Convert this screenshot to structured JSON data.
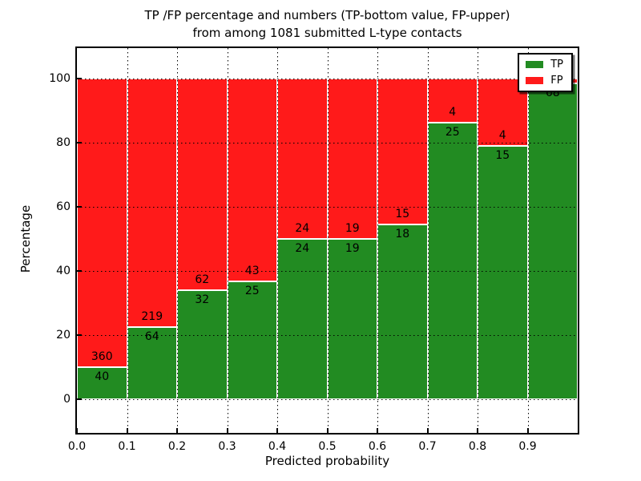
{
  "chart_data": {
    "type": "bar",
    "stacked": true,
    "normalized": "percent",
    "title_line1": "TP /FP percentage and numbers (TP-bottom value, FP-upper)",
    "title_line2": "from among 1081 submitted L-type contacts",
    "xlabel": "Predicted probability",
    "ylabel": "Percentage",
    "total_contacts": 1081,
    "bin_width": 0.1,
    "xlim": [
      0.0,
      1.0
    ],
    "ylim": [
      -10.5,
      109.5
    ],
    "grid": "dotted-black-on",
    "legend_position": "upper-right",
    "bins": [
      {
        "x0": 0.0,
        "tp": 40,
        "fp": 360,
        "tp_label": "40",
        "fp_label": "360",
        "fp_label_visible": true
      },
      {
        "x0": 0.1,
        "tp": 64,
        "fp": 219,
        "tp_label": "64",
        "fp_label": "219",
        "fp_label_visible": true
      },
      {
        "x0": 0.2,
        "tp": 32,
        "fp": 62,
        "tp_label": "32",
        "fp_label": "62",
        "fp_label_visible": true
      },
      {
        "x0": 0.3,
        "tp": 25,
        "fp": 43,
        "tp_label": "25",
        "fp_label": "43",
        "fp_label_visible": true
      },
      {
        "x0": 0.4,
        "tp": 24,
        "fp": 24,
        "tp_label": "24",
        "fp_label": "24",
        "fp_label_visible": true
      },
      {
        "x0": 0.5,
        "tp": 19,
        "fp": 19,
        "tp_label": "19",
        "fp_label": "19",
        "fp_label_visible": true
      },
      {
        "x0": 0.6,
        "tp": 18,
        "fp": 15,
        "tp_label": "18",
        "fp_label": "15",
        "fp_label_visible": true
      },
      {
        "x0": 0.7,
        "tp": 25,
        "fp": 4,
        "tp_label": "25",
        "fp_label": "4",
        "fp_label_visible": true
      },
      {
        "x0": 0.8,
        "tp": 15,
        "fp": 4,
        "tp_label": "15",
        "fp_label": "4",
        "fp_label_visible": true
      },
      {
        "x0": 0.9,
        "tp": 68,
        "fp": 1,
        "tp_label": "68",
        "fp_label": "1",
        "fp_label_visible": false
      }
    ],
    "yticks": [
      0,
      20,
      40,
      60,
      80,
      100
    ],
    "ytick_labels": [
      "0",
      "20",
      "40",
      "60",
      "80",
      "100"
    ],
    "xticks": [
      0.0,
      0.1,
      0.2,
      0.3,
      0.4,
      0.5,
      0.6,
      0.7,
      0.8,
      0.9
    ],
    "xtick_labels": [
      "0.0",
      "0.1",
      "0.2",
      "0.3",
      "0.4",
      "0.5",
      "0.6",
      "0.7",
      "0.8",
      "0.9"
    ],
    "legend": [
      {
        "label": "TP",
        "color": "#228B22"
      },
      {
        "label": "FP",
        "color": "#FF1A1A"
      }
    ],
    "colors": {
      "tp": "#228B22",
      "fp": "#FF1A1A"
    }
  }
}
